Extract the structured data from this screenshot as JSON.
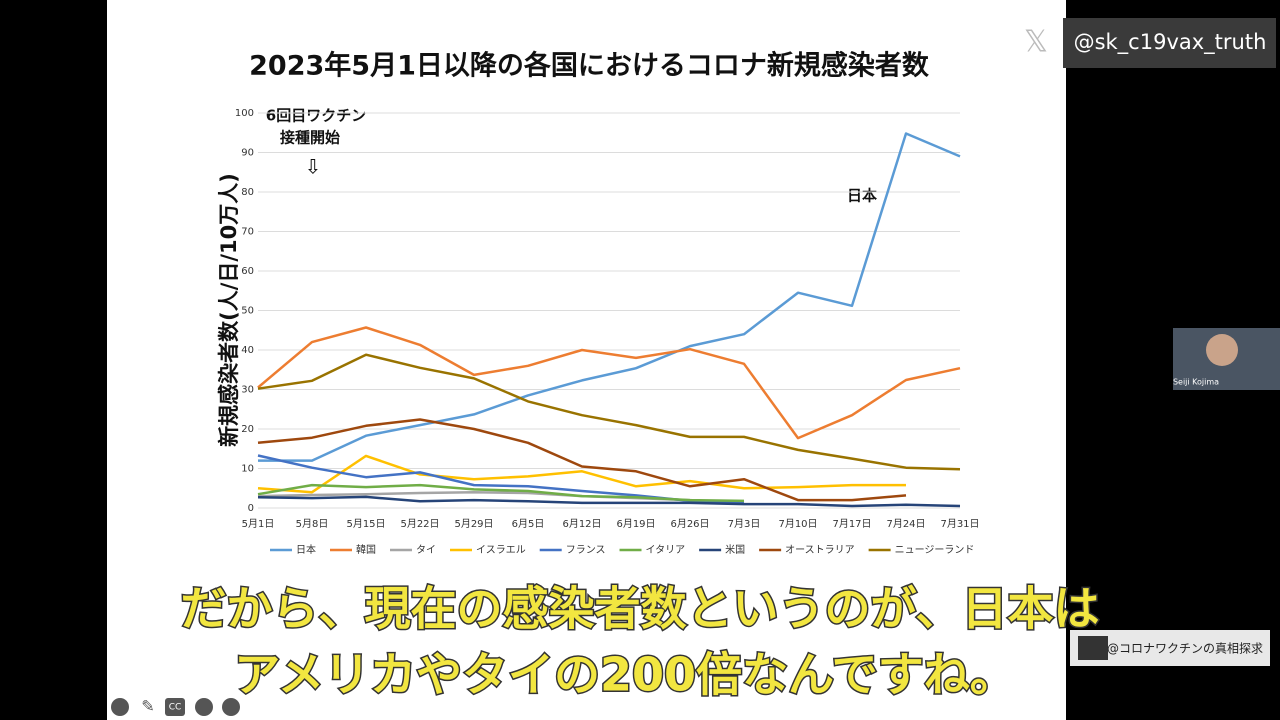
{
  "chart_data": {
    "type": "line",
    "title": "2023年5月1日以降の各国におけるコロナ新規感染者数",
    "y_label": "新規感染者数(人/日/10万人)",
    "annotations": [
      "6回目ワクチン",
      "接種開始",
      "⇩",
      "日本"
    ],
    "categories": [
      "5月1日",
      "5月8日",
      "5月15日",
      "5月22日",
      "5月29日",
      "6月5日",
      "6月12日",
      "6月19日",
      "6月26日",
      "7月3日",
      "7月10日",
      "7月17日",
      "7月24日",
      "7月31日"
    ],
    "ylim": [
      0,
      100
    ],
    "yticks": [
      0,
      10,
      20,
      30,
      40,
      50,
      60,
      70,
      80,
      90,
      100
    ],
    "grid": true,
    "legend": "bottom",
    "series": [
      {
        "name": "日本",
        "color": "#5b9bd5",
        "values": [
          12,
          12,
          18.3,
          21,
          23.7,
          28.5,
          32.3,
          35.4,
          41,
          44,
          54.5,
          51.2,
          94.8,
          89
        ]
      },
      {
        "name": "韓国",
        "color": "#ed7d31",
        "values": [
          30.5,
          42,
          45.7,
          41.3,
          33.7,
          36,
          40,
          38,
          40.2,
          36.5,
          17.7,
          23.5,
          32.4,
          35.4
        ]
      },
      {
        "name": "タイ",
        "color": "#a5a5a5",
        "values": [
          3,
          3.3,
          3.5,
          3.8,
          4,
          3.8,
          3,
          2.5,
          2,
          1.3,
          null,
          null,
          null,
          null
        ]
      },
      {
        "name": "イスラエル",
        "color": "#ffc000",
        "values": [
          5,
          4,
          13.2,
          8.5,
          7.3,
          8,
          9.3,
          5.5,
          6.8,
          5,
          5.3,
          5.8,
          5.8,
          null
        ]
      },
      {
        "name": "フランス",
        "color": "#4472c4",
        "values": [
          13.3,
          10.2,
          7.8,
          9,
          5.8,
          5.5,
          4.3,
          3.2,
          1.8,
          1.3,
          null,
          null,
          null,
          null
        ]
      },
      {
        "name": "イタリア",
        "color": "#70ad47",
        "values": [
          3.5,
          5.8,
          5.3,
          5.8,
          4.7,
          4.3,
          3,
          2.7,
          2,
          1.8,
          null,
          null,
          null,
          null
        ]
      },
      {
        "name": "米国",
        "color": "#264478",
        "values": [
          2.7,
          2.5,
          2.8,
          1.7,
          2,
          1.7,
          1.3,
          1.3,
          1.3,
          1,
          1,
          0.5,
          0.8,
          0.5
        ]
      },
      {
        "name": "オーストラリア",
        "color": "#9e480e",
        "values": [
          16.5,
          17.8,
          20.8,
          22.4,
          20,
          16.5,
          10.5,
          9.3,
          5.5,
          7.3,
          2,
          2,
          3.2,
          null
        ]
      },
      {
        "name": "ニュージーランド",
        "color": "#997300",
        "values": [
          30.2,
          32.2,
          38.8,
          35.5,
          32.8,
          27,
          23.5,
          21,
          18,
          18,
          14.7,
          12.5,
          10.2,
          9.8
        ]
      }
    ]
  },
  "overlay": {
    "handle": "@sk_c19vax_truth",
    "webcam_name": "Seiji Kojima",
    "channel": "@コロナワクチンの真相探求",
    "subtitle": [
      "だから、現在の感染者数というのが、日本は",
      "アメリカやタイの200倍なんですね。"
    ],
    "cc": "CC"
  }
}
